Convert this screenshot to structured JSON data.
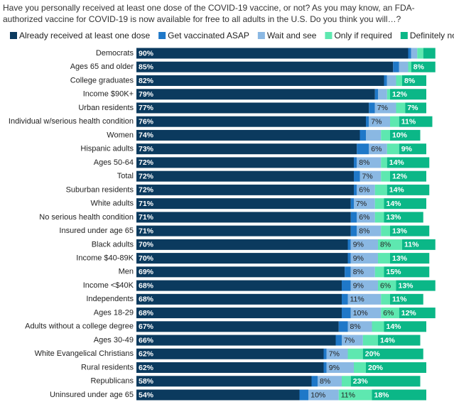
{
  "chart_data": {
    "type": "stacked-bar-horizontal",
    "title": "Have you personally received at least one dose of the COVID-19 vaccine, or not? As you may know, an FDA-authorized vaccine for COVID-19 is now available for free to all adults in the U.S. Do you think you will…?",
    "categories": [
      "Democrats",
      "Ages 65 and older",
      "College graduates",
      "Income $90K+",
      "Urban residents",
      "Individual w/serious health condition",
      "Women",
      "Hispanic adults",
      "Ages 50-64",
      "Total",
      "Suburban residents",
      "White adults",
      "No serious health condition",
      "Insured under age 65",
      "Black adults",
      "Income $40-89K",
      "Men",
      "Income <$40K",
      "Independents",
      "Ages 18-29",
      "Adults without a college degree",
      "Ages 30-49",
      "White Evangelical Christians",
      "Rural residents",
      "Republicans",
      "Uninsured under age 65"
    ],
    "series": [
      {
        "name": "Already received at least one dose",
        "color": "#0b3a5e",
        "values": [
          90,
          85,
          82,
          79,
          77,
          76,
          74,
          73,
          72,
          72,
          72,
          71,
          71,
          71,
          70,
          70,
          69,
          68,
          68,
          68,
          67,
          66,
          62,
          62,
          58,
          54
        ],
        "value_labels": [
          "90%",
          "85%",
          "82%",
          "79%",
          "77%",
          "76%",
          "74%",
          "73%",
          "72%",
          "72%",
          "72%",
          "71%",
          "71%",
          "71%",
          "70%",
          "70%",
          "69%",
          "68%",
          "68%",
          "68%",
          "67%",
          "66%",
          "62%",
          "62%",
          "58%",
          "54%"
        ]
      },
      {
        "name": "Get vaccinated ASAP",
        "color": "#1f78c8",
        "values": [
          1,
          2,
          1,
          1,
          2,
          1,
          2,
          4,
          1,
          2,
          1,
          1,
          2,
          2,
          1,
          1,
          2,
          3,
          2,
          3,
          3,
          2,
          1,
          1,
          2,
          3
        ]
      },
      {
        "name": "Wait and see",
        "color": "#8ab8e3",
        "values": [
          2,
          3,
          3,
          3,
          7,
          7,
          5,
          6,
          8,
          7,
          6,
          7,
          6,
          8,
          9,
          9,
          8,
          9,
          11,
          10,
          8,
          7,
          7,
          9,
          8,
          10
        ],
        "value_labels": [
          null,
          null,
          null,
          null,
          "7%",
          "7%",
          null,
          "6%",
          "8%",
          "7%",
          "6%",
          "7%",
          "6%",
          "8%",
          "9%",
          "9%",
          "8%",
          "9%",
          "11%",
          "10%",
          "8%",
          "7%",
          "7%",
          "9%",
          "8%",
          "10%"
        ]
      },
      {
        "name": "Only if required",
        "color": "#5ee8b0",
        "values": [
          2,
          1,
          2,
          1,
          3,
          3,
          3,
          4,
          2,
          3,
          4,
          3,
          3,
          3,
          8,
          4,
          3,
          6,
          3,
          6,
          4,
          5,
          5,
          4,
          3,
          11
        ],
        "value_labels": [
          null,
          null,
          null,
          null,
          null,
          null,
          null,
          null,
          null,
          null,
          null,
          null,
          null,
          null,
          "8%",
          null,
          null,
          "6%",
          null,
          "6%",
          null,
          null,
          null,
          null,
          null,
          "11%"
        ]
      },
      {
        "name": "Definitely not",
        "color": "#0bb787",
        "values": [
          4,
          8,
          8,
          12,
          7,
          11,
          10,
          9,
          14,
          12,
          14,
          14,
          13,
          13,
          11,
          13,
          15,
          13,
          11,
          12,
          14,
          14,
          20,
          20,
          23,
          18
        ],
        "value_labels": [
          null,
          "8%",
          "8%",
          "12%",
          "7%",
          "11%",
          "10%",
          "9%",
          "14%",
          "12%",
          "14%",
          "14%",
          "13%",
          "13%",
          "11%",
          "13%",
          "15%",
          "13%",
          "11%",
          "12%",
          "14%",
          "14%",
          "20%",
          "20%",
          "23%",
          "18%"
        ]
      }
    ]
  }
}
